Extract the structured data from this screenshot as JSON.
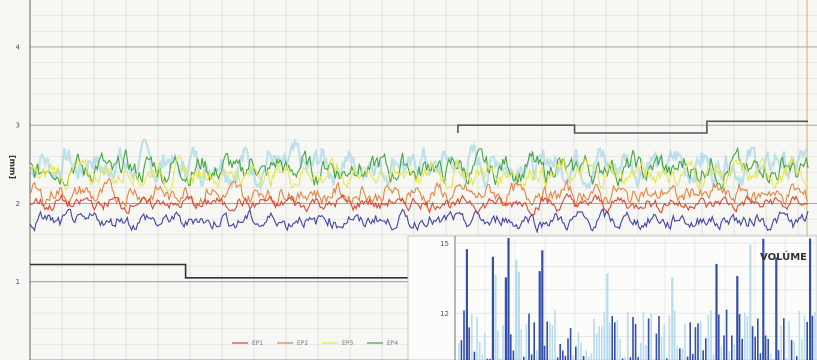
{
  "chart_data": [
    {
      "type": "line",
      "title": "",
      "ylabel": "[mm]",
      "ylim": [
        0,
        4.6
      ],
      "yticks": [
        "1",
        "2",
        "3",
        "4"
      ],
      "grid": true,
      "legend_position": "bottom",
      "series": [
        {
          "name": "EP1",
          "color": "#d9402b",
          "mean": 2.0,
          "amp": 0.13
        },
        {
          "name": "EP2",
          "color": "#e2803a",
          "mean": 2.12,
          "amp": 0.18
        },
        {
          "name": "EP3",
          "color": "#e6e64a",
          "mean": 2.38,
          "amp": 0.22
        },
        {
          "name": "EP4",
          "color": "#3f9f3a",
          "mean": 2.45,
          "amp": 0.25
        },
        {
          "name": "",
          "color": "#3a3aa0",
          "mean": 1.78,
          "amp": 0.15
        },
        {
          "name": "",
          "color": "#8fd0e0",
          "mean": 2.5,
          "amp": 0.3
        }
      ],
      "step_lines": [
        {
          "color": "#333333",
          "points": [
            [
              0,
              1.22
            ],
            [
              0.2,
              1.22
            ],
            [
              0.2,
              1.05
            ],
            [
              1,
              1.05
            ]
          ]
        },
        {
          "color": "#555555",
          "points": [
            [
              0.55,
              2.9
            ],
            [
              0.55,
              3.0
            ],
            [
              0.7,
              3.0
            ],
            [
              0.7,
              2.9
            ],
            [
              0.87,
              2.9
            ],
            [
              0.87,
              3.05
            ],
            [
              1,
              3.05
            ]
          ]
        }
      ]
    },
    {
      "type": "bar",
      "title": "VOLÚME",
      "yticks": [
        "12",
        "15"
      ],
      "ylim": [
        10,
        15.3
      ],
      "series_colors": [
        "#2a46a8",
        "#a8d4e8"
      ]
    }
  ]
}
